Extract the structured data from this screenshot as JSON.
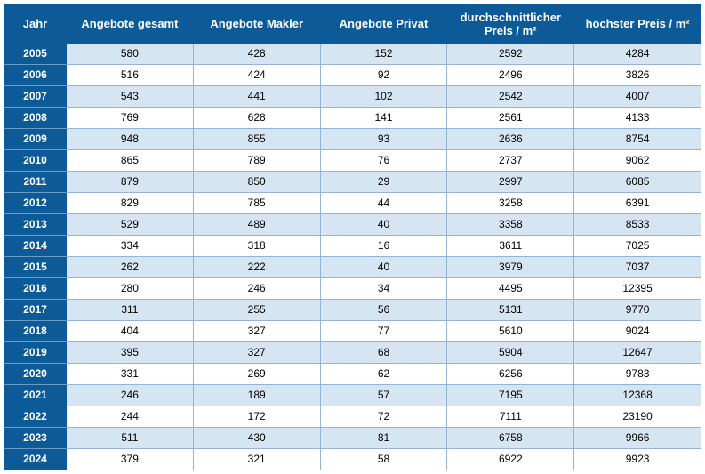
{
  "table": {
    "header_bg": "#0c5a98",
    "header_color": "#ffffff",
    "row_odd_bg": "#d6e5f2",
    "row_even_bg": "#ffffff",
    "border_color": "#94b4d6",
    "columns": [
      {
        "key": "jahr",
        "label": "Jahr"
      },
      {
        "key": "gesamt",
        "label": "Angebote gesamt"
      },
      {
        "key": "makler",
        "label": "Angebote Makler"
      },
      {
        "key": "privat",
        "label": "Angebote Privat"
      },
      {
        "key": "avgpreis",
        "label": "durchschnittlicher Preis / m²"
      },
      {
        "key": "maxpreis",
        "label": "höchster Preis / m²"
      }
    ],
    "rows": [
      {
        "jahr": "2005",
        "gesamt": "580",
        "makler": "428",
        "privat": "152",
        "avgpreis": "2592",
        "maxpreis": "4284"
      },
      {
        "jahr": "2006",
        "gesamt": "516",
        "makler": "424",
        "privat": "92",
        "avgpreis": "2496",
        "maxpreis": "3826"
      },
      {
        "jahr": "2007",
        "gesamt": "543",
        "makler": "441",
        "privat": "102",
        "avgpreis": "2542",
        "maxpreis": "4007"
      },
      {
        "jahr": "2008",
        "gesamt": "769",
        "makler": "628",
        "privat": "141",
        "avgpreis": "2561",
        "maxpreis": "4133"
      },
      {
        "jahr": "2009",
        "gesamt": "948",
        "makler": "855",
        "privat": "93",
        "avgpreis": "2636",
        "maxpreis": "8754"
      },
      {
        "jahr": "2010",
        "gesamt": "865",
        "makler": "789",
        "privat": "76",
        "avgpreis": "2737",
        "maxpreis": "9062"
      },
      {
        "jahr": "2011",
        "gesamt": "879",
        "makler": "850",
        "privat": "29",
        "avgpreis": "2997",
        "maxpreis": "6085"
      },
      {
        "jahr": "2012",
        "gesamt": "829",
        "makler": "785",
        "privat": "44",
        "avgpreis": "3258",
        "maxpreis": "6391"
      },
      {
        "jahr": "2013",
        "gesamt": "529",
        "makler": "489",
        "privat": "40",
        "avgpreis": "3358",
        "maxpreis": "8533"
      },
      {
        "jahr": "2014",
        "gesamt": "334",
        "makler": "318",
        "privat": "16",
        "avgpreis": "3611",
        "maxpreis": "7025"
      },
      {
        "jahr": "2015",
        "gesamt": "262",
        "makler": "222",
        "privat": "40",
        "avgpreis": "3979",
        "maxpreis": "7037"
      },
      {
        "jahr": "2016",
        "gesamt": "280",
        "makler": "246",
        "privat": "34",
        "avgpreis": "4495",
        "maxpreis": "12395"
      },
      {
        "jahr": "2017",
        "gesamt": "311",
        "makler": "255",
        "privat": "56",
        "avgpreis": "5131",
        "maxpreis": "9770"
      },
      {
        "jahr": "2018",
        "gesamt": "404",
        "makler": "327",
        "privat": "77",
        "avgpreis": "5610",
        "maxpreis": "9024"
      },
      {
        "jahr": "2019",
        "gesamt": "395",
        "makler": "327",
        "privat": "68",
        "avgpreis": "5904",
        "maxpreis": "12647"
      },
      {
        "jahr": "2020",
        "gesamt": "331",
        "makler": "269",
        "privat": "62",
        "avgpreis": "6256",
        "maxpreis": "9783"
      },
      {
        "jahr": "2021",
        "gesamt": "246",
        "makler": "189",
        "privat": "57",
        "avgpreis": "7195",
        "maxpreis": "12368"
      },
      {
        "jahr": "2022",
        "gesamt": "244",
        "makler": "172",
        "privat": "72",
        "avgpreis": "7111",
        "maxpreis": "23190"
      },
      {
        "jahr": "2023",
        "gesamt": "511",
        "makler": "430",
        "privat": "81",
        "avgpreis": "6758",
        "maxpreis": "9966"
      },
      {
        "jahr": "2024",
        "gesamt": "379",
        "makler": "321",
        "privat": "58",
        "avgpreis": "6922",
        "maxpreis": "9923"
      }
    ]
  }
}
